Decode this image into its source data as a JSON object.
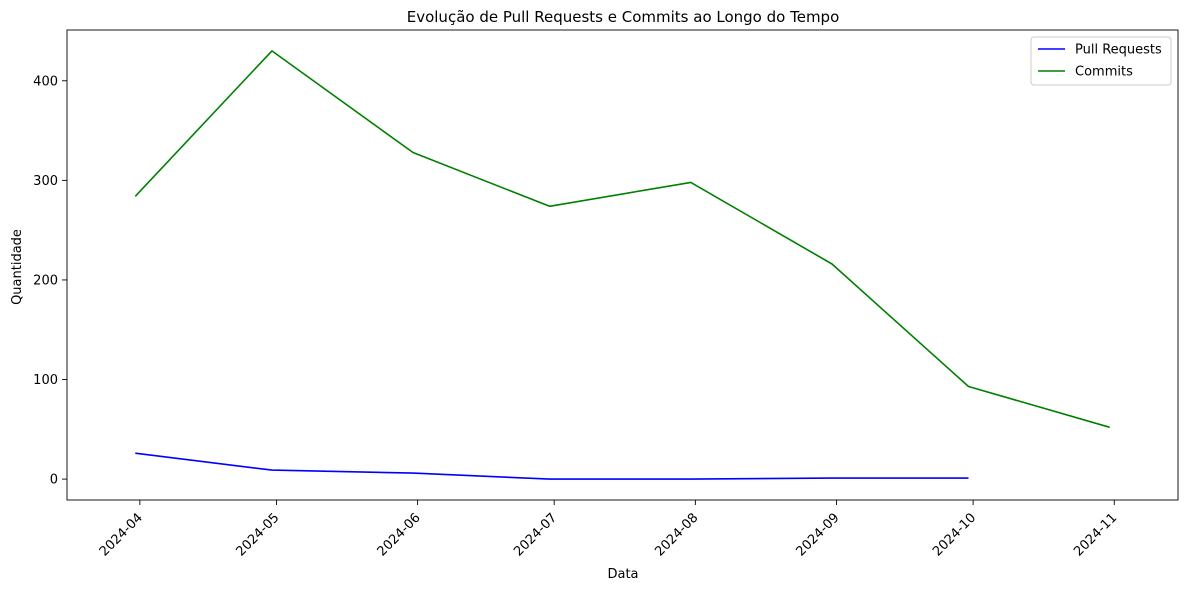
{
  "chart_data": {
    "type": "line",
    "title": "Evolução de Pull Requests e Commits ao Longo do Tempo",
    "xlabel": "Data",
    "ylabel": "Quantidade",
    "x": [
      "2024-03-31",
      "2024-04-30",
      "2024-05-31",
      "2024-06-30",
      "2024-07-31",
      "2024-08-31",
      "2024-09-30",
      "2024-10-31"
    ],
    "x_ticks": [
      "2024-04-01",
      "2024-05-01",
      "2024-06-01",
      "2024-07-01",
      "2024-08-01",
      "2024-09-01",
      "2024-10-01",
      "2024-11-01"
    ],
    "x_tick_labels": [
      "2024-04",
      "2024-05",
      "2024-06",
      "2024-07",
      "2024-08",
      "2024-09",
      "2024-10",
      "2024-11"
    ],
    "xlim": [
      "2024-03-16",
      "2024-11-15"
    ],
    "y_ticks": [
      0,
      100,
      200,
      300,
      400
    ],
    "ylim": [
      -21,
      451
    ],
    "grid": false,
    "legend_position": "top-right",
    "series": [
      {
        "name": "Pull Requests",
        "color": "#0000ff",
        "values": [
          26,
          9,
          6,
          0,
          0,
          1,
          1,
          null
        ]
      },
      {
        "name": "Commits",
        "color": "#008000",
        "values": [
          284,
          430,
          328,
          274,
          298,
          216,
          93,
          52
        ]
      }
    ]
  }
}
